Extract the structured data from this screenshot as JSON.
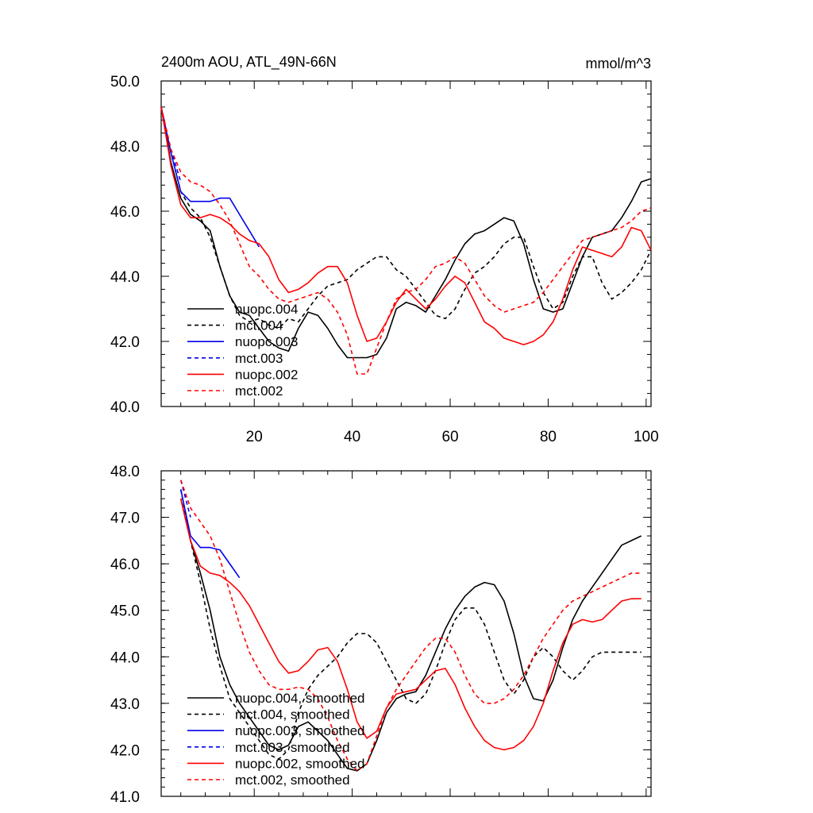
{
  "chart_data": [
    {
      "type": "line",
      "title": "2400m AOU, ATL_49N-66N",
      "units": "mmol/m^3",
      "xlabel": "",
      "ylabel": "",
      "xlim": [
        1,
        101
      ],
      "ylim": [
        40,
        50
      ],
      "x_ticks": [
        20,
        40,
        60,
        80,
        100
      ],
      "x_tick_labels": [
        "20",
        "40",
        "60",
        "80",
        "100"
      ],
      "y_ticks": [
        40,
        42,
        44,
        46,
        48,
        50
      ],
      "y_tick_labels": [
        "40.0",
        "42.0",
        "44.0",
        "46.0",
        "48.0",
        "50.0"
      ],
      "legend_position": "lower-left",
      "series": [
        {
          "name": "nuopc.004",
          "color": "#000000",
          "dash": "solid",
          "x": [
            1,
            3,
            5,
            7,
            9,
            11,
            13,
            15,
            17,
            19,
            21,
            23,
            25,
            27,
            29,
            31,
            33,
            35,
            37,
            39,
            41,
            43,
            45,
            47,
            49,
            51,
            53,
            55,
            57,
            59,
            61,
            63,
            65,
            67,
            69,
            71,
            73,
            75,
            77,
            79,
            81,
            83,
            85,
            87,
            89,
            91,
            93,
            95,
            97,
            99,
            101
          ],
          "y": [
            49.2,
            47.5,
            46.4,
            45.9,
            45.7,
            45.4,
            44.3,
            43.4,
            42.9,
            42.8,
            42.4,
            42.0,
            41.8,
            41.7,
            42.4,
            42.9,
            42.8,
            42.4,
            41.9,
            41.5,
            41.5,
            41.5,
            41.6,
            42.1,
            43.0,
            43.2,
            43.1,
            42.9,
            43.4,
            43.9,
            44.5,
            45.0,
            45.3,
            45.4,
            45.6,
            45.8,
            45.7,
            45.0,
            43.9,
            43.0,
            42.9,
            43.0,
            43.8,
            44.6,
            45.2,
            45.3,
            45.4,
            45.8,
            46.3,
            46.9,
            47.0
          ]
        },
        {
          "name": "mct.004",
          "color": "#000000",
          "dash": "dashed",
          "x": [
            1,
            3,
            5,
            7,
            9,
            11,
            13,
            15,
            17,
            19,
            21,
            23,
            25,
            27,
            29,
            31,
            33,
            35,
            37,
            39,
            41,
            43,
            45,
            47,
            49,
            51,
            53,
            55,
            57,
            59,
            61,
            63,
            65,
            67,
            69,
            71,
            73,
            75,
            77,
            79,
            81,
            83,
            85,
            87,
            89,
            91,
            93,
            95,
            97,
            99,
            101
          ],
          "y": [
            49.2,
            47.8,
            46.6,
            46.1,
            45.8,
            45.2,
            44.3,
            43.4,
            42.8,
            42.6,
            42.7,
            42.5,
            42.4,
            42.7,
            42.6,
            43.0,
            43.4,
            43.7,
            43.8,
            43.9,
            44.2,
            44.4,
            44.6,
            44.6,
            44.2,
            44.0,
            43.6,
            43.2,
            42.8,
            42.7,
            43.0,
            43.6,
            44.1,
            44.3,
            44.6,
            45.0,
            45.2,
            45.2,
            44.3,
            43.5,
            43.0,
            43.2,
            44.0,
            44.6,
            44.6,
            43.8,
            43.3,
            43.5,
            43.8,
            44.2,
            44.8
          ]
        },
        {
          "name": "nuopc.003",
          "color": "#0000ee",
          "dash": "solid",
          "x": [
            1,
            3,
            5,
            7,
            9,
            11,
            13,
            15,
            17,
            19,
            21
          ],
          "y": [
            49.2,
            47.8,
            46.6,
            46.3,
            46.3,
            46.3,
            46.4,
            46.4,
            45.9,
            45.4,
            44.9
          ]
        },
        {
          "name": "mct.003",
          "color": "#0000ee",
          "dash": "dashed",
          "x": [
            1,
            3,
            5
          ],
          "y": [
            49.2,
            47.9,
            46.9
          ]
        },
        {
          "name": "nuopc.002",
          "color": "#ff0000",
          "dash": "solid",
          "x": [
            1,
            3,
            5,
            7,
            9,
            11,
            13,
            15,
            17,
            19,
            21,
            23,
            25,
            27,
            29,
            31,
            33,
            35,
            37,
            39,
            41,
            43,
            45,
            47,
            49,
            51,
            53,
            55,
            57,
            59,
            61,
            63,
            65,
            67,
            69,
            71,
            73,
            75,
            77,
            79,
            81,
            83,
            85,
            87,
            89,
            91,
            93,
            95,
            97,
            99,
            101
          ],
          "y": [
            49.2,
            47.4,
            46.2,
            45.8,
            45.8,
            45.9,
            45.8,
            45.6,
            45.3,
            45.1,
            45.0,
            44.6,
            43.9,
            43.5,
            43.6,
            43.8,
            44.1,
            44.3,
            44.3,
            43.8,
            42.8,
            42.0,
            42.1,
            42.6,
            43.2,
            43.6,
            43.3,
            43.0,
            43.3,
            43.7,
            44.0,
            43.8,
            43.2,
            42.6,
            42.4,
            42.1,
            42.0,
            41.9,
            42.0,
            42.2,
            42.6,
            43.3,
            44.2,
            44.9,
            44.8,
            44.7,
            44.6,
            44.9,
            45.5,
            45.4,
            44.8
          ]
        },
        {
          "name": "mct.002",
          "color": "#ff0000",
          "dash": "dashed",
          "x": [
            1,
            3,
            5,
            7,
            9,
            11,
            13,
            15,
            17,
            19,
            21,
            23,
            25,
            27,
            29,
            31,
            33,
            35,
            37,
            39,
            41,
            43,
            45,
            47,
            49,
            51,
            53,
            55,
            57,
            59,
            61,
            63,
            65,
            67,
            69,
            71,
            73,
            75,
            77,
            79,
            81,
            83,
            85,
            87,
            89,
            91,
            93,
            95,
            97,
            99,
            101
          ],
          "y": [
            49.2,
            47.9,
            47.2,
            46.9,
            46.8,
            46.6,
            46.2,
            45.7,
            45.0,
            44.3,
            44.0,
            43.6,
            43.3,
            43.2,
            43.3,
            43.4,
            43.5,
            43.3,
            42.9,
            42.2,
            41.0,
            41.0,
            41.8,
            42.6,
            43.3,
            43.5,
            43.6,
            43.9,
            44.3,
            44.4,
            44.6,
            44.4,
            43.9,
            43.4,
            43.1,
            42.9,
            43.0,
            43.1,
            43.2,
            43.5,
            43.9,
            44.3,
            44.7,
            45.1,
            45.2,
            45.3,
            45.4,
            45.5,
            45.7,
            46.0,
            46.1
          ]
        }
      ]
    },
    {
      "type": "line",
      "title": "",
      "xlabel": "",
      "ylabel": "",
      "xlim": [
        1,
        101
      ],
      "ylim": [
        41,
        48
      ],
      "x_ticks": [
        20,
        40,
        60,
        80,
        100
      ],
      "y_ticks": [
        41,
        42,
        43,
        44,
        45,
        46,
        47,
        48
      ],
      "y_tick_labels": [
        "41.0",
        "42.0",
        "43.0",
        "44.0",
        "45.0",
        "46.0",
        "47.0",
        "48.0"
      ],
      "legend_position": "lower-left",
      "series": [
        {
          "name": "nuopc.004, smoothed",
          "color": "#000000",
          "dash": "solid",
          "x": [
            5,
            7,
            9,
            11,
            13,
            15,
            17,
            19,
            21,
            23,
            25,
            27,
            29,
            31,
            33,
            35,
            37,
            39,
            41,
            43,
            45,
            47,
            49,
            51,
            53,
            55,
            57,
            59,
            61,
            63,
            65,
            67,
            69,
            71,
            73,
            75,
            77,
            79,
            81,
            83,
            85,
            87,
            89,
            91,
            93,
            95,
            97,
            99
          ],
          "y": [
            47.4,
            46.5,
            45.8,
            45.0,
            44.0,
            43.4,
            43.0,
            42.7,
            42.4,
            42.1,
            42.0,
            42.1,
            42.5,
            42.6,
            42.4,
            42.2,
            41.9,
            41.6,
            41.55,
            41.7,
            42.2,
            42.8,
            43.1,
            43.2,
            43.25,
            43.6,
            44.1,
            44.6,
            45.0,
            45.3,
            45.5,
            45.6,
            45.55,
            45.2,
            44.5,
            43.6,
            43.1,
            43.05,
            43.5,
            44.2,
            44.8,
            45.2,
            45.5,
            45.8,
            46.1,
            46.4,
            46.5,
            46.6
          ]
        },
        {
          "name": "mct.004, smoothed",
          "color": "#000000",
          "dash": "dashed",
          "x": [
            5,
            7,
            9,
            11,
            13,
            15,
            17,
            19,
            21,
            23,
            25,
            27,
            29,
            31,
            33,
            35,
            37,
            39,
            41,
            43,
            45,
            47,
            49,
            51,
            53,
            55,
            57,
            59,
            61,
            63,
            65,
            67,
            69,
            71,
            73,
            75,
            77,
            79,
            81,
            83,
            85,
            87,
            89,
            91,
            93,
            95,
            97,
            99
          ],
          "y": [
            47.6,
            46.5,
            45.6,
            44.6,
            43.8,
            43.1,
            42.8,
            42.5,
            42.2,
            41.9,
            41.8,
            42.0,
            42.8,
            43.3,
            43.6,
            43.8,
            44.0,
            44.3,
            44.5,
            44.5,
            44.3,
            43.9,
            43.5,
            43.1,
            43.0,
            43.2,
            43.7,
            44.3,
            44.8,
            45.05,
            45.05,
            44.7,
            44.1,
            43.5,
            43.2,
            43.5,
            44.0,
            44.2,
            44.0,
            43.7,
            43.5,
            43.7,
            44.0,
            44.1,
            44.1,
            44.1,
            44.1,
            44.1
          ]
        },
        {
          "name": "nuopc.003, smoothed",
          "color": "#0000ee",
          "dash": "solid",
          "x": [
            5,
            7,
            9,
            11,
            13,
            15,
            17
          ],
          "y": [
            47.6,
            46.6,
            46.35,
            46.35,
            46.3,
            46.0,
            45.7
          ]
        },
        {
          "name": "mct.003, smoothed",
          "color": "#0000ee",
          "dash": "dashed",
          "x": [
            5,
            7
          ],
          "y": [
            47.8,
            47.0
          ]
        },
        {
          "name": "nuopc.002, smoothed",
          "color": "#ff0000",
          "dash": "solid",
          "x": [
            5,
            7,
            9,
            11,
            13,
            15,
            17,
            19,
            21,
            23,
            25,
            27,
            29,
            31,
            33,
            35,
            37,
            39,
            41,
            43,
            45,
            47,
            49,
            51,
            53,
            55,
            57,
            59,
            61,
            63,
            65,
            67,
            69,
            71,
            73,
            75,
            77,
            79,
            81,
            83,
            85,
            87,
            89,
            91,
            93,
            95,
            97,
            99
          ],
          "y": [
            47.4,
            46.5,
            45.95,
            45.8,
            45.75,
            45.6,
            45.4,
            45.1,
            44.7,
            44.3,
            43.9,
            43.65,
            43.7,
            43.9,
            44.15,
            44.2,
            43.9,
            43.3,
            42.6,
            42.25,
            42.4,
            42.9,
            43.2,
            43.25,
            43.3,
            43.5,
            43.7,
            43.75,
            43.4,
            42.9,
            42.5,
            42.2,
            42.05,
            42.0,
            42.05,
            42.2,
            42.5,
            43.0,
            43.7,
            44.3,
            44.7,
            44.8,
            44.75,
            44.8,
            45.0,
            45.2,
            45.25,
            45.25
          ]
        },
        {
          "name": "mct.002, smoothed",
          "color": "#ff0000",
          "dash": "dashed",
          "x": [
            5,
            7,
            9,
            11,
            13,
            15,
            17,
            19,
            21,
            23,
            25,
            27,
            29,
            31,
            33,
            35,
            37,
            39,
            41,
            43,
            45,
            47,
            49,
            51,
            53,
            55,
            57,
            59,
            61,
            63,
            65,
            67,
            69,
            71,
            73,
            75,
            77,
            79,
            81,
            83,
            85,
            87,
            89,
            91,
            93,
            95,
            97,
            99
          ],
          "y": [
            47.8,
            47.2,
            46.9,
            46.6,
            46.1,
            45.4,
            44.7,
            44.1,
            43.7,
            43.4,
            43.3,
            43.3,
            43.35,
            43.3,
            43.1,
            42.7,
            42.2,
            41.8,
            41.55,
            41.7,
            42.3,
            42.9,
            43.3,
            43.6,
            43.9,
            44.2,
            44.4,
            44.4,
            44.1,
            43.6,
            43.2,
            43.0,
            43.0,
            43.1,
            43.3,
            43.6,
            44.0,
            44.4,
            44.7,
            45.0,
            45.2,
            45.3,
            45.4,
            45.5,
            45.6,
            45.7,
            45.8,
            45.8
          ]
        }
      ]
    }
  ]
}
